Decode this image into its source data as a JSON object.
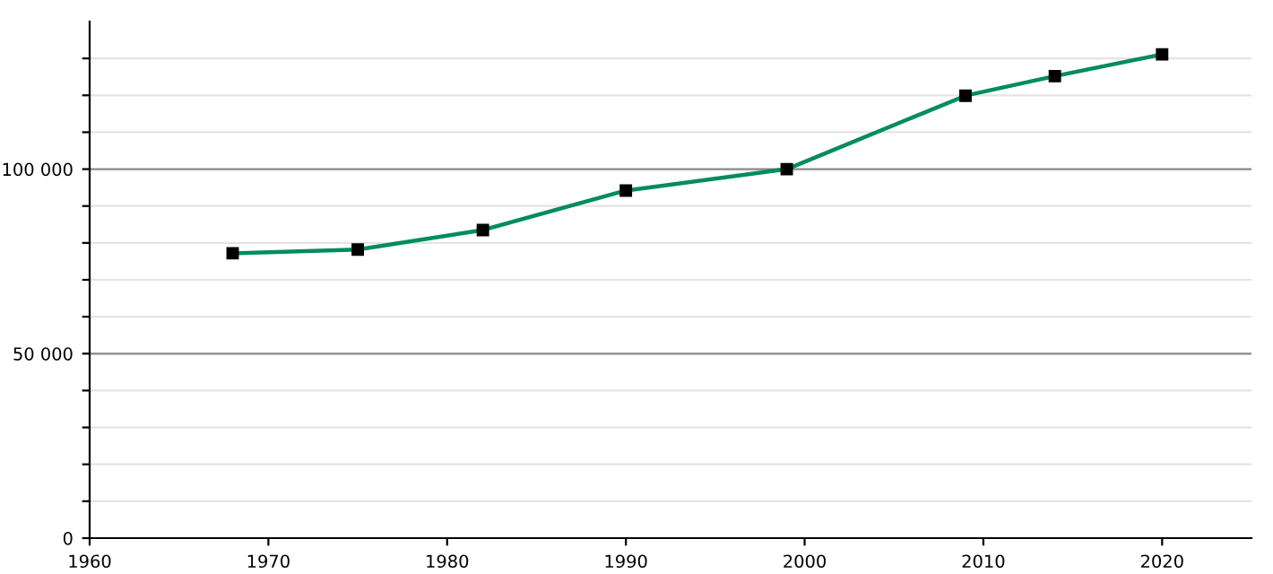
{
  "chart_data": {
    "type": "line",
    "x": [
      1968,
      1975,
      1982,
      1990,
      1999,
      2009,
      2014,
      2020
    ],
    "series": [
      {
        "color": "#008c5f",
        "values": [
          77200,
          78200,
          83500,
          94200,
          100000,
          119900,
          125200,
          131100
        ]
      }
    ],
    "marker": "square",
    "xlim": [
      1960,
      2025
    ],
    "xticks": [
      1960,
      1970,
      1980,
      1990,
      2000,
      2010,
      2020
    ],
    "ylim": [
      0,
      140000
    ],
    "yticks": [
      {
        "value": 0,
        "label": "0"
      },
      {
        "value": 10000,
        "label": null
      },
      {
        "value": 20000,
        "label": null
      },
      {
        "value": 30000,
        "label": null
      },
      {
        "value": 40000,
        "label": null
      },
      {
        "value": 50000,
        "label": "50 000"
      },
      {
        "value": 60000,
        "label": null
      },
      {
        "value": 70000,
        "label": null
      },
      {
        "value": 80000,
        "label": null
      },
      {
        "value": 90000,
        "label": null
      },
      {
        "value": 100000,
        "label": "100 000"
      },
      {
        "value": 110000,
        "label": null
      },
      {
        "value": 120000,
        "label": null
      },
      {
        "value": 130000,
        "label": null
      }
    ],
    "grid": "y"
  }
}
